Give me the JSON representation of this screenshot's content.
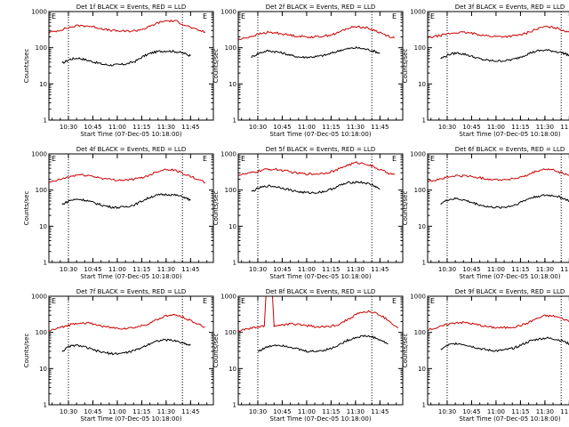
{
  "chart_data": [
    {
      "type": "line",
      "title": "Det 1f BLACK = Events, RED = LLD",
      "xlabel": "Start Time (07-Dec-05 10:18:00)",
      "ylabel": "Counts/sec",
      "markers": [
        "E",
        "E"
      ],
      "xticks": [
        "10:30",
        "10:45",
        "11:00",
        "11:15",
        "11:30",
        "11:45"
      ],
      "yticks": [
        "1",
        "10",
        "100",
        "1000"
      ],
      "series": [
        {
          "color": "#000000",
          "x": [
            "10:26",
            "10:31",
            "10:36",
            "10:41",
            "10:46",
            "10:51",
            "10:56",
            "11:01",
            "11:06",
            "11:11",
            "11:16",
            "11:21",
            "11:26",
            "11:31",
            "11:36",
            "11:41",
            "11:45"
          ],
          "values": [
            37,
            48,
            52,
            46,
            40,
            35,
            33,
            34,
            36,
            42,
            58,
            72,
            80,
            82,
            78,
            70,
            60
          ]
        },
        {
          "color": "#cc0000",
          "x": [
            "10:18",
            "10:24",
            "10:30",
            "10:36",
            "10:42",
            "10:48",
            "10:54",
            "11:00",
            "11:06",
            "11:12",
            "11:18",
            "11:24",
            "11:30",
            "11:36",
            "11:42",
            "11:48",
            "11:54"
          ],
          "values": [
            260,
            300,
            360,
            410,
            400,
            360,
            310,
            290,
            285,
            300,
            350,
            470,
            560,
            540,
            420,
            320,
            270
          ]
        }
      ]
    },
    {
      "type": "line",
      "title": "Det 2f BLACK = Events, RED = LLD",
      "xlabel": "Start Time (07-Dec-05 10:18:00)",
      "ylabel": "Counts/sec",
      "markers": [
        "E",
        "E"
      ],
      "xticks": [
        "10:30",
        "10:45",
        "11:00",
        "11:15",
        "11:30",
        "11:45"
      ],
      "yticks": [
        "1",
        "10",
        "100",
        "1000"
      ],
      "series": [
        {
          "color": "#000000",
          "x": [
            "10:26",
            "10:31",
            "10:36",
            "10:41",
            "10:46",
            "10:51",
            "10:56",
            "11:01",
            "11:06",
            "11:11",
            "11:16",
            "11:21",
            "11:26",
            "11:31",
            "11:36",
            "11:41",
            "11:45"
          ],
          "values": [
            55,
            72,
            82,
            78,
            70,
            60,
            55,
            55,
            57,
            62,
            72,
            86,
            95,
            100,
            92,
            82,
            70
          ]
        },
        {
          "color": "#cc0000",
          "x": [
            "10:18",
            "10:24",
            "10:30",
            "10:36",
            "10:42",
            "10:48",
            "10:54",
            "11:00",
            "11:06",
            "11:12",
            "11:18",
            "11:24",
            "11:30",
            "11:36",
            "11:42",
            "11:48",
            "11:54"
          ],
          "values": [
            165,
            195,
            235,
            265,
            255,
            230,
            210,
            200,
            200,
            215,
            245,
            330,
            390,
            360,
            300,
            230,
            185
          ]
        }
      ]
    },
    {
      "type": "line",
      "title": "Det 3f BLACK = Events, RED = LLD",
      "xlabel": "Start Time (07-Dec-05 10:18:00)",
      "ylabel": "Counts/sec",
      "markers": [
        "E",
        "E"
      ],
      "xticks": [
        "10:30",
        "10:45",
        "11:00",
        "11:15",
        "11:30",
        "11:45"
      ],
      "yticks": [
        "1",
        "10",
        "100",
        "1000"
      ],
      "series": [
        {
          "color": "#000000",
          "x": [
            "10:26",
            "10:31",
            "10:36",
            "10:41",
            "10:46",
            "10:51",
            "10:56",
            "11:01",
            "11:06",
            "11:11",
            "11:16",
            "11:21",
            "11:26",
            "11:31",
            "11:36",
            "11:41",
            "11:45"
          ],
          "values": [
            50,
            65,
            72,
            66,
            56,
            48,
            44,
            43,
            44,
            48,
            58,
            72,
            82,
            86,
            80,
            72,
            62
          ]
        },
        {
          "color": "#cc0000",
          "x": [
            "10:18",
            "10:24",
            "10:30",
            "10:36",
            "10:42",
            "10:48",
            "10:54",
            "11:00",
            "11:06",
            "11:12",
            "11:18",
            "11:24",
            "11:30",
            "11:36",
            "11:42",
            "11:48",
            "11:54"
          ],
          "values": [
            190,
            210,
            240,
            265,
            260,
            240,
            215,
            205,
            205,
            215,
            245,
            320,
            380,
            360,
            300,
            240,
            205
          ]
        }
      ]
    },
    {
      "type": "line",
      "title": "Det 4f BLACK = Events, RED = LLD",
      "xlabel": "Start Time (07-Dec-05 10:18:00)",
      "ylabel": "Counts/sec",
      "markers": [
        "E",
        "E"
      ],
      "xticks": [
        "10:30",
        "10:45",
        "11:00",
        "11:15",
        "11:30",
        "11:45"
      ],
      "yticks": [
        "1",
        "10",
        "100",
        "1000"
      ],
      "series": [
        {
          "color": "#000000",
          "x": [
            "10:26",
            "10:31",
            "10:36",
            "10:41",
            "10:46",
            "10:51",
            "10:56",
            "11:01",
            "11:06",
            "11:11",
            "11:16",
            "11:21",
            "11:26",
            "11:31",
            "11:36",
            "11:41",
            "11:45"
          ],
          "values": [
            40,
            52,
            56,
            52,
            44,
            38,
            34,
            33,
            35,
            40,
            52,
            66,
            74,
            76,
            72,
            64,
            52
          ]
        },
        {
          "color": "#cc0000",
          "x": [
            "10:18",
            "10:24",
            "10:30",
            "10:36",
            "10:42",
            "10:48",
            "10:54",
            "11:00",
            "11:06",
            "11:12",
            "11:18",
            "11:24",
            "11:30",
            "11:36",
            "11:42",
            "11:48",
            "11:54"
          ],
          "values": [
            160,
            190,
            230,
            265,
            255,
            225,
            200,
            190,
            190,
            205,
            240,
            320,
            380,
            350,
            270,
            210,
            160
          ]
        }
      ]
    },
    {
      "type": "line",
      "title": "Det 5f BLACK = Events, RED = LLD",
      "xlabel": "Start Time (07-Dec-05 10:18:00)",
      "ylabel": "Counts/sec",
      "markers": [
        "E",
        "E"
      ],
      "xticks": [
        "10:30",
        "10:45",
        "11:00",
        "11:15",
        "11:30",
        "11:45"
      ],
      "yticks": [
        "1",
        "10",
        "100",
        "1000"
      ],
      "series": [
        {
          "color": "#000000",
          "x": [
            "10:26",
            "10:31",
            "10:36",
            "10:41",
            "10:46",
            "10:51",
            "10:56",
            "11:01",
            "11:06",
            "11:11",
            "11:16",
            "11:21",
            "11:26",
            "11:31",
            "11:36",
            "11:41",
            "11:45"
          ],
          "values": [
            90,
            115,
            130,
            125,
            112,
            98,
            88,
            84,
            85,
            92,
            110,
            138,
            160,
            168,
            158,
            135,
            105
          ]
        },
        {
          "color": "#cc0000",
          "x": [
            "10:18",
            "10:24",
            "10:30",
            "10:36",
            "10:42",
            "10:48",
            "10:54",
            "11:00",
            "11:06",
            "11:12",
            "11:18",
            "11:24",
            "11:30",
            "11:36",
            "11:42",
            "11:48",
            "11:54"
          ],
          "values": [
            260,
            285,
            330,
            380,
            370,
            330,
            295,
            280,
            280,
            300,
            350,
            470,
            570,
            540,
            420,
            320,
            265
          ]
        }
      ]
    },
    {
      "type": "line",
      "title": "Det 6f BLACK = Events, RED = LLD",
      "xlabel": "Start Time (07-Dec-05 10:18:00)",
      "ylabel": "Counts/sec",
      "markers": [
        "E",
        "E"
      ],
      "xticks": [
        "10:30",
        "10:45",
        "11:00",
        "11:15",
        "11:30",
        "11:45"
      ],
      "yticks": [
        "1",
        "10",
        "100",
        "1000"
      ],
      "series": [
        {
          "color": "#000000",
          "x": [
            "10:26",
            "10:31",
            "10:36",
            "10:41",
            "10:46",
            "10:51",
            "10:56",
            "11:01",
            "11:06",
            "11:11",
            "11:16",
            "11:21",
            "11:26",
            "11:31",
            "11:36",
            "11:41",
            "11:45"
          ],
          "values": [
            42,
            55,
            58,
            52,
            44,
            38,
            34,
            33,
            34,
            38,
            48,
            60,
            68,
            72,
            70,
            60,
            50
          ]
        },
        {
          "color": "#cc0000",
          "x": [
            "10:18",
            "10:24",
            "10:30",
            "10:36",
            "10:42",
            "10:48",
            "10:54",
            "11:00",
            "11:06",
            "11:12",
            "11:18",
            "11:24",
            "11:30",
            "11:36",
            "11:42",
            "11:48",
            "11:54"
          ],
          "values": [
            175,
            195,
            225,
            250,
            245,
            225,
            205,
            195,
            195,
            210,
            240,
            320,
            380,
            350,
            280,
            225,
            190
          ]
        }
      ]
    },
    {
      "type": "line",
      "title": "Det 7f BLACK = Events, RED = LLD",
      "xlabel": "Start Time (07-Dec-05 10:18:00)",
      "ylabel": "Counts/sec",
      "markers": [
        "E",
        "E"
      ],
      "xticks": [
        "10:30",
        "10:45",
        "11:00",
        "11:15",
        "11:30",
        "11:45"
      ],
      "yticks": [
        "1",
        "10",
        "100",
        "1000"
      ],
      "series": [
        {
          "color": "#000000",
          "x": [
            "10:26",
            "10:31",
            "10:36",
            "10:41",
            "10:46",
            "10:51",
            "10:56",
            "11:01",
            "11:06",
            "11:11",
            "11:16",
            "11:21",
            "11:26",
            "11:31",
            "11:36",
            "11:41",
            "11:45"
          ],
          "values": [
            30,
            42,
            44,
            38,
            32,
            28,
            26,
            26,
            28,
            32,
            40,
            52,
            60,
            62,
            58,
            50,
            44
          ]
        },
        {
          "color": "#cc0000",
          "x": [
            "10:18",
            "10:24",
            "10:30",
            "10:36",
            "10:42",
            "10:48",
            "10:54",
            "11:00",
            "11:06",
            "11:12",
            "11:18",
            "11:24",
            "11:30",
            "11:36",
            "11:42",
            "11:48",
            "11:54"
          ],
          "values": [
            110,
            130,
            160,
            185,
            180,
            160,
            140,
            130,
            130,
            140,
            165,
            220,
            290,
            300,
            250,
            180,
            140
          ]
        }
      ]
    },
    {
      "type": "line",
      "title": "Det 8f BLACK = Events, RED = LLD",
      "xlabel": "Start Time (07-Dec-05 10:18:00)",
      "ylabel": "Counts/sec",
      "markers": [
        "E",
        "E"
      ],
      "xticks": [
        "10:30",
        "10:45",
        "11:00",
        "11:15",
        "11:30",
        "11:45"
      ],
      "yticks": [
        "1",
        "10",
        "100",
        "1000"
      ],
      "series": [
        {
          "color": "#000000",
          "x": [
            "10:30",
            "10:35",
            "10:40",
            "10:45",
            "10:50",
            "10:55",
            "11:00",
            "11:05",
            "11:10",
            "11:15",
            "11:20",
            "11:25",
            "11:30",
            "11:35",
            "11:40",
            "11:45",
            "11:50"
          ],
          "values": [
            30,
            38,
            45,
            44,
            40,
            34,
            30,
            30,
            32,
            36,
            46,
            60,
            72,
            80,
            76,
            62,
            48
          ]
        },
        {
          "color": "#cc0000",
          "x": [
            "10:18",
            "10:24",
            "10:30",
            "10:34",
            "10:35",
            "10:39",
            "10:40",
            "10:44",
            "10:50",
            "10:56",
            "11:02",
            "11:08",
            "11:14",
            "11:20",
            "11:26",
            "11:32",
            "11:38",
            "11:44",
            "11:50",
            "11:56"
          ],
          "values": [
            110,
            125,
            140,
            150,
            1000,
            1000,
            150,
            160,
            170,
            165,
            150,
            140,
            145,
            170,
            240,
            340,
            380,
            320,
            220,
            130
          ]
        }
      ]
    },
    {
      "type": "line",
      "title": "Det 9f BLACK = Events, RED = LLD",
      "xlabel": "Start Time (07-Dec-05 10:18:00)",
      "ylabel": "Counts/sec",
      "markers": [
        "E",
        "E"
      ],
      "xticks": [
        "10:30",
        "10:45",
        "11:00",
        "11:15",
        "11:30",
        "11:45"
      ],
      "yticks": [
        "1",
        "10",
        "100",
        "1000"
      ],
      "series": [
        {
          "color": "#000000",
          "x": [
            "10:26",
            "10:31",
            "10:36",
            "10:41",
            "10:46",
            "10:51",
            "10:56",
            "11:01",
            "11:06",
            "11:11",
            "11:16",
            "11:21",
            "11:26",
            "11:31",
            "11:36",
            "11:41",
            "11:45"
          ],
          "values": [
            34,
            45,
            50,
            46,
            40,
            35,
            32,
            31,
            33,
            37,
            46,
            58,
            66,
            70,
            66,
            58,
            48
          ]
        },
        {
          "color": "#cc0000",
          "x": [
            "10:18",
            "10:24",
            "10:30",
            "10:36",
            "10:42",
            "10:48",
            "10:54",
            "11:00",
            "11:06",
            "11:12",
            "11:18",
            "11:24",
            "11:30",
            "11:36",
            "11:42",
            "11:48",
            "11:54"
          ],
          "values": [
            120,
            135,
            165,
            190,
            185,
            165,
            145,
            135,
            135,
            145,
            170,
            230,
            290,
            280,
            230,
            175,
            140
          ]
        }
      ]
    }
  ]
}
